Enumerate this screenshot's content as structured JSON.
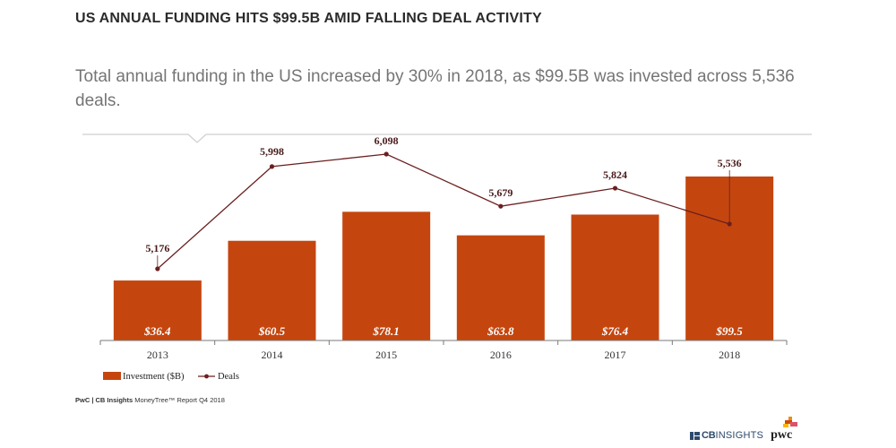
{
  "headline": "US ANNUAL FUNDING HITS $99.5B AMID FALLING DEAL ACTIVITY",
  "subhead": "Total annual funding in the US increased by 30% in 2018, as $99.5B was invested across 5,536 deals.",
  "source": {
    "bold": "PwC | CB Insights",
    "rest": " MoneyTree™ Report Q4 2018"
  },
  "logos": {
    "cb_strong": "CB",
    "cb_light": "INSIGHTS",
    "pwc": "pwc"
  },
  "colors": {
    "bar": "#c4460e",
    "line": "#6b1f1f",
    "axis": "#7a7a7a",
    "divider": "#cfcfcf"
  },
  "chart_data": {
    "type": "bar",
    "categories": [
      "2013",
      "2014",
      "2015",
      "2016",
      "2017",
      "2018"
    ],
    "series": [
      {
        "name": "Investment ($B)",
        "type": "bar",
        "values": [
          36.4,
          60.5,
          78.1,
          63.8,
          76.4,
          99.5
        ],
        "labels": [
          "$36.4",
          "$60.5",
          "$78.1",
          "$63.8",
          "$76.4",
          "$99.5"
        ]
      },
      {
        "name": "Deals",
        "type": "line",
        "values": [
          5176,
          5998,
          6098,
          5679,
          5824,
          5536
        ],
        "labels": [
          "5,176",
          "5,998",
          "6,098",
          "5,679",
          "5,824",
          "5,536"
        ]
      }
    ],
    "legend": {
      "position": "bottom-left"
    },
    "grid": false,
    "y_bar_lim": [
      0,
      110
    ],
    "y_line_lim": [
      4860,
      6260
    ]
  }
}
